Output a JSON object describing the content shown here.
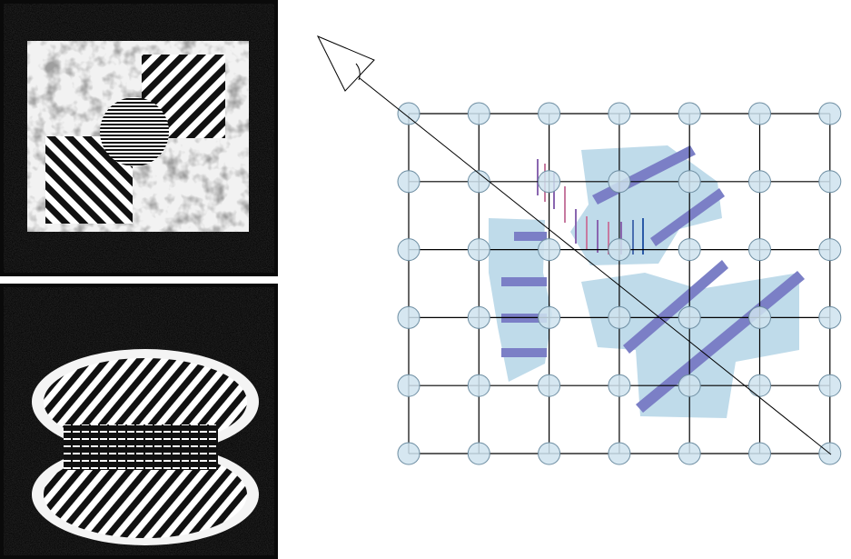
{
  "figure": {
    "panels": [
      {
        "id": "top",
        "content": "noise-background-with-square-mosaic-and-striped-patches"
      },
      {
        "id": "bottom",
        "content": "noise-background-with-striped-blobs"
      }
    ],
    "grid": {
      "rows": 6,
      "cols": 7
    },
    "colors": {
      "noise_dark": "#1b1b1b",
      "stripe": "#111111",
      "node_fill": "#cfe3ee",
      "node_stroke": "#6f8fa3",
      "region_fill": "#bfdbea",
      "bar_fill": "#7b7fc6",
      "line": "#000000"
    },
    "icons": [
      "viewer-eye-icon"
    ]
  }
}
